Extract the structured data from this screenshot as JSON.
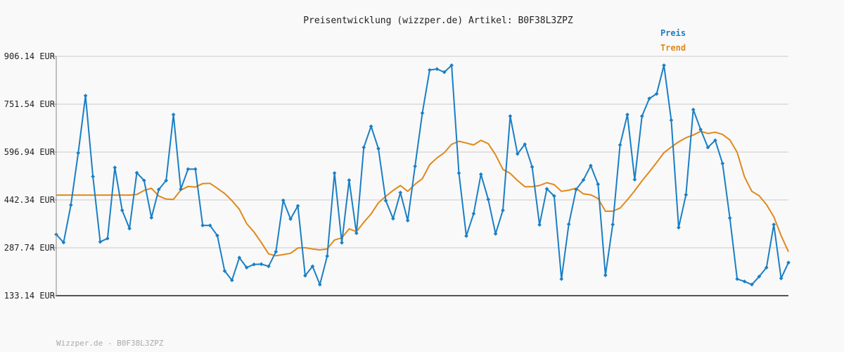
{
  "chart_data": {
    "type": "line",
    "title": "Preisentwicklung (wizzper.de) Artikel: B0F38L3ZPZ",
    "footer": "Wizzper.de - B0F38L3ZPZ",
    "unit": "EUR",
    "ylim": [
      133.14,
      906.14
    ],
    "yticks": [
      "906.14 EUR",
      "751.54 EUR",
      "596.94 EUR",
      "442.34 EUR",
      "287.74 EUR",
      "133.14 EUR"
    ],
    "ytick_values": [
      906.14,
      751.54,
      596.94,
      442.34,
      287.74,
      133.14
    ],
    "grid": true,
    "legend_position": "top-right",
    "series": [
      {
        "name": "Preis",
        "color": "#1a7fc4",
        "values": [
          331,
          305,
          426,
          594,
          779,
          518,
          307,
          318,
          547,
          409,
          350,
          530,
          505,
          385,
          476,
          505,
          718,
          477,
          542,
          542,
          360,
          360,
          327,
          213,
          183,
          256,
          224,
          234,
          235,
          228,
          275,
          441,
          381,
          423,
          198,
          228,
          169,
          261,
          529,
          304,
          506,
          335,
          612,
          680,
          608,
          440,
          382,
          466,
          376,
          551,
          723,
          862,
          865,
          855,
          877,
          529,
          326,
          398,
          525,
          444,
          333,
          409,
          713,
          591,
          622,
          549,
          362,
          478,
          455,
          187,
          364,
          476,
          507,
          553,
          493,
          199,
          363,
          620,
          718,
          508,
          713,
          770,
          785,
          877,
          700,
          353,
          459,
          734,
          670,
          612,
          635,
          560,
          384,
          187,
          179,
          169,
          195,
          224,
          363,
          189,
          240
        ]
      },
      {
        "name": "Trend",
        "color": "#e0891a",
        "values": [
          458,
          458,
          458,
          458,
          458,
          458,
          458,
          458,
          458,
          458,
          458,
          460,
          473,
          480,
          455,
          445,
          444,
          474,
          486,
          484,
          495,
          496,
          480,
          463,
          440,
          412,
          366,
          339,
          305,
          268,
          262,
          266,
          270,
          287,
          288,
          284,
          281,
          284,
          313,
          320,
          349,
          340,
          370,
          397,
          433,
          454,
          473,
          489,
          470,
          493,
          511,
          556,
          578,
          595,
          622,
          632,
          626,
          620,
          635,
          624,
          588,
          541,
          528,
          505,
          485,
          485,
          489,
          498,
          492,
          470,
          474,
          480,
          462,
          459,
          447,
          406,
          406,
          416,
          443,
          472,
          504,
          533,
          563,
          595,
          613,
          630,
          643,
          652,
          664,
          657,
          661,
          654,
          636,
          596,
          517,
          470,
          456,
          427,
          388,
          327,
          275
        ]
      }
    ]
  }
}
